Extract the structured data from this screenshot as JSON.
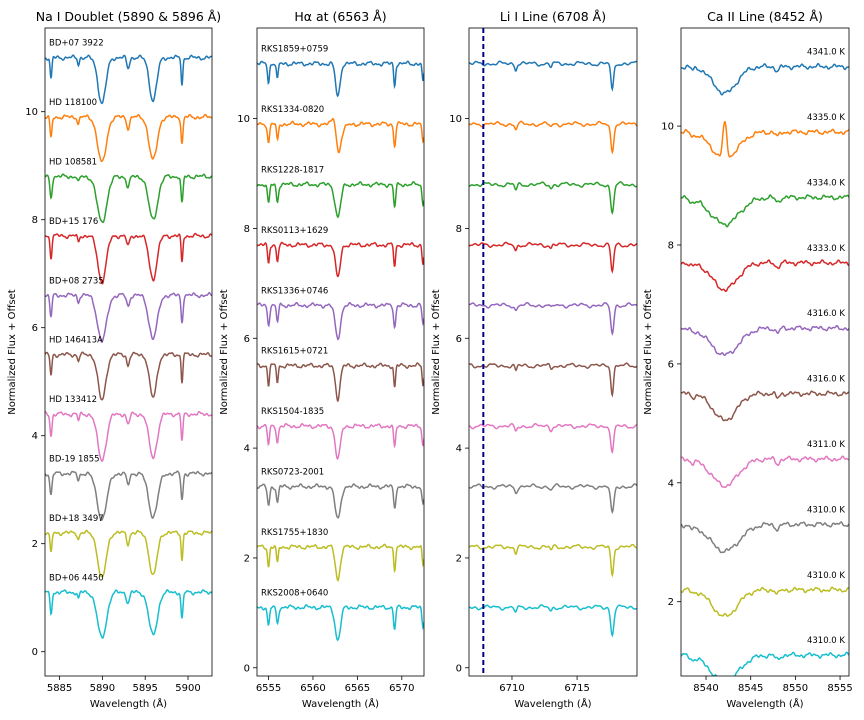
{
  "chart_data": [
    {
      "type": "line",
      "title": "Na I Doublet (5890 & 5896 Å)",
      "xlabel": "Wavelength (Å)",
      "ylabel": "Normalized Flux + Offset",
      "xlim": [
        5883.3,
        5902.8
      ],
      "ylim": [
        -0.45,
        11.55
      ],
      "xticks": [
        5885,
        5890,
        5895,
        5900
      ],
      "yticks": [
        0,
        2,
        4,
        6,
        8,
        10
      ],
      "grid": false,
      "series": [
        {
          "name": "BD+07 3922",
          "offset": 10.0
        },
        {
          "name": "HD 118100",
          "offset": 8.9
        },
        {
          "name": "HD 108581",
          "offset": 7.8
        },
        {
          "name": "BD+15 176",
          "offset": 6.7
        },
        {
          "name": "BD+08 2735",
          "offset": 5.6
        },
        {
          "name": "HD 146413A",
          "offset": 4.5
        },
        {
          "name": "HD 133412",
          "offset": 3.4
        },
        {
          "name": "BD-19 1855",
          "offset": 2.3
        },
        {
          "name": "BD+18 3497",
          "offset": 1.2
        },
        {
          "name": "BD+06 4450",
          "offset": 0.1
        }
      ],
      "lines": [
        {
          "center": 5889.95,
          "depth": 0.85,
          "width": 0.45
        },
        {
          "center": 5895.92,
          "depth": 0.8,
          "width": 0.42
        },
        {
          "center": 5893.0,
          "depth": 0.2,
          "width": 0.15
        },
        {
          "center": 5899.3,
          "depth": 0.5,
          "width": 0.1
        },
        {
          "center": 5884.0,
          "depth": 0.4,
          "width": 0.1
        },
        {
          "center": 5887.2,
          "depth": 0.12,
          "width": 0.1
        }
      ]
    },
    {
      "type": "line",
      "title": "Hα at (6563 Å)",
      "xlabel": "Wavelength (Å)",
      "ylabel": "Normalized Flux + Offset",
      "xlim": [
        6553.7,
        6572.5
      ],
      "ylim": [
        -0.15,
        11.65
      ],
      "xticks": [
        6555,
        6560,
        6565,
        6570
      ],
      "yticks": [
        0,
        2,
        4,
        6,
        8,
        10
      ],
      "grid": false,
      "series": [
        {
          "name": "RKS1859+0759",
          "offset": 10.0
        },
        {
          "name": "RKS1334-0820",
          "offset": 8.9
        },
        {
          "name": "RKS1228-1817",
          "offset": 7.8
        },
        {
          "name": "RKS0113+1629",
          "offset": 6.7
        },
        {
          "name": "RKS1336+0746",
          "offset": 5.6
        },
        {
          "name": "RKS1615+0721",
          "offset": 4.5
        },
        {
          "name": "RKS1504-1835",
          "offset": 3.4
        },
        {
          "name": "RKS0723-2001",
          "offset": 2.3
        },
        {
          "name": "RKS1755+1830",
          "offset": 1.2
        },
        {
          "name": "RKS2008+0640",
          "offset": 0.1
        }
      ],
      "lines": [
        {
          "center": 6562.8,
          "depth": 0.6,
          "width": 0.25
        },
        {
          "center": 6555.0,
          "depth": 0.35,
          "width": 0.1
        },
        {
          "center": 6556.0,
          "depth": 0.3,
          "width": 0.1
        },
        {
          "center": 6569.2,
          "depth": 0.4,
          "width": 0.1
        },
        {
          "center": 6572.4,
          "depth": 0.35,
          "width": 0.1
        }
      ]
    },
    {
      "type": "line",
      "title": "Li I Line (6708 Å)",
      "xlabel": "Wavelength (Å)",
      "ylabel": "Normalized Flux + Offset",
      "xlim": [
        6706.7,
        6719.6
      ],
      "ylim": [
        -0.15,
        11.65
      ],
      "xticks": [
        6710,
        6715
      ],
      "yticks": [
        0,
        2,
        4,
        6,
        8,
        10
      ],
      "grid": false,
      "vline": {
        "x": 6707.8,
        "color": "#00008b",
        "style": "dashed"
      },
      "series": [
        {
          "name": "4341.0 K",
          "offset": 10.0
        },
        {
          "name": "4335.0 K",
          "offset": 8.9
        },
        {
          "name": "4334.0 K",
          "offset": 7.8
        },
        {
          "name": "4333.0 K",
          "offset": 6.7
        },
        {
          "name": "4316.0 K",
          "offset": 5.6
        },
        {
          "name": "4316.0 K",
          "offset": 4.5
        },
        {
          "name": "4311.0 K",
          "offset": 3.4
        },
        {
          "name": "4310.0 K",
          "offset": 2.3
        },
        {
          "name": "4310.0 K",
          "offset": 1.2
        },
        {
          "name": "4310.0 K",
          "offset": 0.1
        }
      ],
      "lines": [
        {
          "center": 6717.7,
          "depth": 0.5,
          "width": 0.1
        },
        {
          "center": 6710.3,
          "depth": 0.1,
          "width": 0.08
        },
        {
          "center": 6713.0,
          "depth": 0.06,
          "width": 0.08
        }
      ]
    },
    {
      "type": "line",
      "title": "Ca II Line (8452 Å)",
      "xlabel": "Wavelength (Å)",
      "ylabel": "Normalized Flux + Offset",
      "xlim": [
        8537.2,
        8556.0
      ],
      "ylim": [
        0.75,
        11.65
      ],
      "xticks": [
        8540,
        8545,
        8550,
        8555
      ],
      "yticks": [
        2,
        4,
        6,
        8,
        10
      ],
      "grid": false,
      "series": [
        {
          "name": "4341.0 K",
          "offset": 10.0
        },
        {
          "name": "4335.0 K",
          "offset": 8.9
        },
        {
          "name": "4334.0 K",
          "offset": 7.8
        },
        {
          "name": "4333.0 K",
          "offset": 6.7
        },
        {
          "name": "4316.0 K",
          "offset": 5.6
        },
        {
          "name": "4316.0 K",
          "offset": 4.5
        },
        {
          "name": "4311.0 K",
          "offset": 3.4
        },
        {
          "name": "4310.0 K",
          "offset": 2.3
        },
        {
          "name": "4310.0 K",
          "offset": 1.2
        },
        {
          "name": "4310.0 K",
          "offset": 0.1
        }
      ],
      "lines": [
        {
          "center": 8542.1,
          "depth": 0.45,
          "width": 1.3
        },
        {
          "center": 8548.0,
          "depth": 0.08,
          "width": 0.2
        },
        {
          "center": 8538.5,
          "depth": 0.05,
          "width": 0.2
        }
      ]
    }
  ],
  "palette": [
    "#1f77b4",
    "#ff7f0e",
    "#2ca02c",
    "#d62728",
    "#9467bd",
    "#8c564b",
    "#e377c2",
    "#7f7f7f",
    "#bcbd22",
    "#17becf"
  ]
}
